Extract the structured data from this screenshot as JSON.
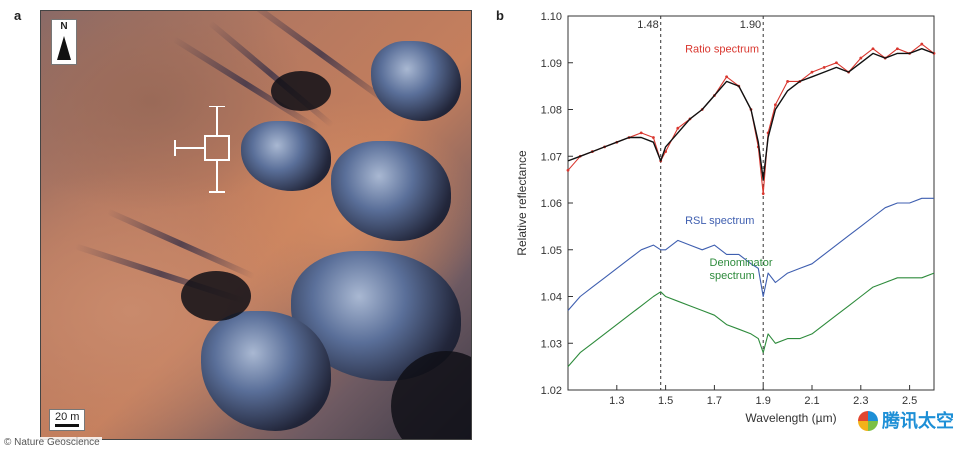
{
  "panels": {
    "a": "a",
    "b": "b"
  },
  "map": {
    "north_label": "N",
    "scale_label": "20 m"
  },
  "credit": "© Nature Geoscience",
  "watermark": "腾讯太空",
  "chart_data": {
    "type": "line",
    "xlabel": "Wavelength (µm)",
    "ylabel": "Relative reflectance",
    "xlim": [
      1.1,
      2.6
    ],
    "ylim": [
      1.02,
      1.1
    ],
    "xticks": [
      1.3,
      1.5,
      1.7,
      1.9,
      2.1,
      2.3,
      2.5
    ],
    "yticks": [
      1.02,
      1.03,
      1.04,
      1.05,
      1.06,
      1.07,
      1.08,
      1.09,
      1.1
    ],
    "vlines": [
      {
        "x": 1.48,
        "label": "1.48"
      },
      {
        "x": 1.9,
        "label": "1.90"
      }
    ],
    "colors": {
      "ratio": "#d9372f",
      "ratio_fit": "#111111",
      "rsl": "#3f5fb0",
      "denominator": "#2e8b3c"
    },
    "series": [
      {
        "name": "Ratio spectrum",
        "x": [
          1.1,
          1.15,
          1.2,
          1.25,
          1.3,
          1.35,
          1.4,
          1.45,
          1.48,
          1.5,
          1.55,
          1.6,
          1.65,
          1.7,
          1.75,
          1.8,
          1.85,
          1.88,
          1.9,
          1.92,
          1.95,
          2.0,
          2.05,
          2.1,
          2.15,
          2.2,
          2.25,
          2.3,
          2.35,
          2.4,
          2.45,
          2.5,
          2.55,
          2.6
        ],
        "y": [
          1.067,
          1.07,
          1.071,
          1.072,
          1.073,
          1.074,
          1.075,
          1.074,
          1.069,
          1.071,
          1.076,
          1.078,
          1.08,
          1.083,
          1.087,
          1.085,
          1.08,
          1.072,
          1.062,
          1.075,
          1.081,
          1.086,
          1.086,
          1.088,
          1.089,
          1.09,
          1.088,
          1.091,
          1.093,
          1.091,
          1.093,
          1.092,
          1.094,
          1.092
        ]
      },
      {
        "name": "",
        "x": [
          1.1,
          1.15,
          1.2,
          1.25,
          1.3,
          1.35,
          1.4,
          1.45,
          1.48,
          1.5,
          1.55,
          1.6,
          1.65,
          1.7,
          1.75,
          1.8,
          1.85,
          1.88,
          1.9,
          1.92,
          1.95,
          2.0,
          2.05,
          2.1,
          2.15,
          2.2,
          2.25,
          2.3,
          2.35,
          2.4,
          2.45,
          2.5,
          2.55,
          2.6
        ],
        "y": [
          1.069,
          1.07,
          1.071,
          1.072,
          1.073,
          1.074,
          1.074,
          1.073,
          1.069,
          1.072,
          1.075,
          1.078,
          1.08,
          1.083,
          1.086,
          1.085,
          1.08,
          1.073,
          1.065,
          1.074,
          1.08,
          1.084,
          1.086,
          1.087,
          1.088,
          1.089,
          1.088,
          1.09,
          1.092,
          1.091,
          1.092,
          1.092,
          1.093,
          1.092
        ]
      },
      {
        "name": "RSL spectrum",
        "x": [
          1.1,
          1.15,
          1.2,
          1.25,
          1.3,
          1.35,
          1.4,
          1.45,
          1.48,
          1.5,
          1.55,
          1.6,
          1.65,
          1.7,
          1.75,
          1.8,
          1.85,
          1.88,
          1.9,
          1.92,
          1.95,
          2.0,
          2.05,
          2.1,
          2.15,
          2.2,
          2.25,
          2.3,
          2.35,
          2.4,
          2.45,
          2.5,
          2.55,
          2.6
        ],
        "y": [
          1.037,
          1.04,
          1.042,
          1.044,
          1.046,
          1.048,
          1.05,
          1.051,
          1.05,
          1.05,
          1.052,
          1.051,
          1.05,
          1.051,
          1.049,
          1.049,
          1.047,
          1.046,
          1.04,
          1.045,
          1.043,
          1.045,
          1.046,
          1.047,
          1.049,
          1.051,
          1.053,
          1.055,
          1.057,
          1.059,
          1.06,
          1.06,
          1.061,
          1.061
        ]
      },
      {
        "name": "Denominator spectrum",
        "x": [
          1.1,
          1.15,
          1.2,
          1.25,
          1.3,
          1.35,
          1.4,
          1.45,
          1.48,
          1.5,
          1.55,
          1.6,
          1.65,
          1.7,
          1.75,
          1.8,
          1.85,
          1.88,
          1.9,
          1.92,
          1.95,
          2.0,
          2.05,
          2.1,
          2.15,
          2.2,
          2.25,
          2.3,
          2.35,
          2.4,
          2.45,
          2.5,
          2.55,
          2.6
        ],
        "y": [
          1.025,
          1.028,
          1.03,
          1.032,
          1.034,
          1.036,
          1.038,
          1.04,
          1.041,
          1.04,
          1.039,
          1.038,
          1.037,
          1.036,
          1.034,
          1.033,
          1.032,
          1.031,
          1.028,
          1.032,
          1.03,
          1.031,
          1.031,
          1.032,
          1.034,
          1.036,
          1.038,
          1.04,
          1.042,
          1.043,
          1.044,
          1.044,
          1.044,
          1.045
        ]
      }
    ]
  }
}
